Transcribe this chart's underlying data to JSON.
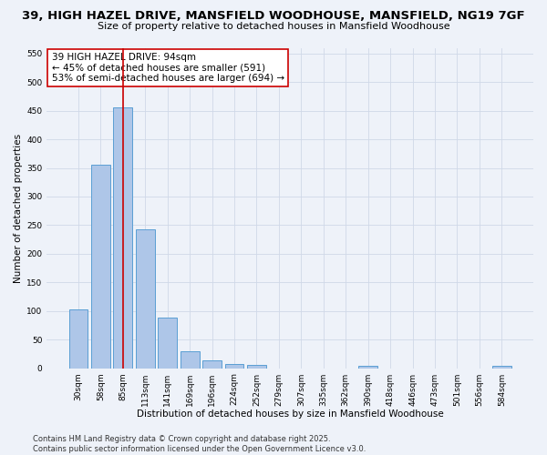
{
  "title": "39, HIGH HAZEL DRIVE, MANSFIELD WOODHOUSE, MANSFIELD, NG19 7GF",
  "subtitle": "Size of property relative to detached houses in Mansfield Woodhouse",
  "xlabel": "Distribution of detached houses by size in Mansfield Woodhouse",
  "ylabel": "Number of detached properties",
  "footnote": "Contains HM Land Registry data © Crown copyright and database right 2025.\nContains public sector information licensed under the Open Government Licence v3.0.",
  "categories": [
    "30sqm",
    "58sqm",
    "85sqm",
    "113sqm",
    "141sqm",
    "169sqm",
    "196sqm",
    "224sqm",
    "252sqm",
    "279sqm",
    "307sqm",
    "335sqm",
    "362sqm",
    "390sqm",
    "418sqm",
    "446sqm",
    "473sqm",
    "501sqm",
    "556sqm",
    "584sqm"
  ],
  "values": [
    103,
    356,
    456,
    243,
    88,
    30,
    13,
    8,
    5,
    0,
    0,
    0,
    0,
    4,
    0,
    0,
    0,
    0,
    0,
    4
  ],
  "bar_color": "#aec6e8",
  "bar_edge_color": "#5a9fd4",
  "vline_color": "#cc0000",
  "vline_position": 2,
  "annotation_line1": "39 HIGH HAZEL DRIVE: 94sqm",
  "annotation_line2": "← 45% of detached houses are smaller (591)",
  "annotation_line3": "53% of semi-detached houses are larger (694) →",
  "annotation_box_color": "#ffffff",
  "annotation_box_edge": "#cc0000",
  "ylim": [
    0,
    560
  ],
  "yticks": [
    0,
    50,
    100,
    150,
    200,
    250,
    300,
    350,
    400,
    450,
    500,
    550
  ],
  "bg_color": "#eef2f9",
  "grid_color": "#d0d8e8",
  "title_fontsize": 9.5,
  "subtitle_fontsize": 8,
  "axis_label_fontsize": 7.5,
  "tick_fontsize": 6.5,
  "annotation_fontsize": 7.5,
  "footnote_fontsize": 6
}
